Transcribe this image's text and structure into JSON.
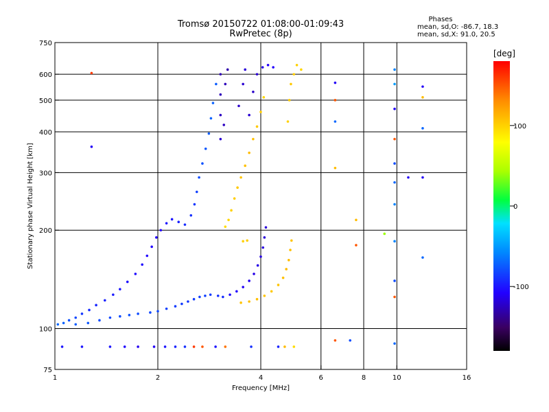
{
  "chart_data": {
    "type": "scatter",
    "title": "Tromsø 20150722 01:08:00-01:09:43",
    "subtitle": "RwPretec (8p)",
    "stats": {
      "heading": "Phases",
      "line_o": "mean, sd,O: -86.7, 18.3",
      "line_x": "mean, sd,X:  91.0, 20.5"
    },
    "xlabel": "Frequency [MHz]",
    "ylabel": "Stationary phase Virtual Height [km]",
    "x_scale": "log",
    "y_scale": "log",
    "xlim": [
      1,
      16
    ],
    "ylim": [
      75,
      750
    ],
    "x_ticks": [
      1,
      2,
      4,
      6,
      8,
      10,
      16
    ],
    "y_ticks": [
      75,
      100,
      200,
      300,
      400,
      500,
      600,
      750
    ],
    "x_gridlines": [
      2,
      4,
      6,
      8,
      10
    ],
    "y_gridlines": [
      100,
      200,
      300,
      400,
      500,
      600
    ],
    "grid": true,
    "colorbar": {
      "label": "[deg]",
      "min": -180,
      "max": 180,
      "ticks": [
        100,
        0,
        -100
      ]
    },
    "points": [
      {
        "x": 1.02,
        "y": 103,
        "phase": -70
      },
      {
        "x": 1.06,
        "y": 104,
        "phase": -72
      },
      {
        "x": 1.1,
        "y": 106,
        "phase": -78
      },
      {
        "x": 1.15,
        "y": 108,
        "phase": -82
      },
      {
        "x": 1.2,
        "y": 111,
        "phase": -88
      },
      {
        "x": 1.26,
        "y": 114,
        "phase": -92
      },
      {
        "x": 1.32,
        "y": 118,
        "phase": -94
      },
      {
        "x": 1.4,
        "y": 122,
        "phase": -96
      },
      {
        "x": 1.48,
        "y": 127,
        "phase": -98
      },
      {
        "x": 1.55,
        "y": 132,
        "phase": -100
      },
      {
        "x": 1.63,
        "y": 139,
        "phase": -102
      },
      {
        "x": 1.72,
        "y": 147,
        "phase": -104
      },
      {
        "x": 1.8,
        "y": 157,
        "phase": -104
      },
      {
        "x": 1.86,
        "y": 167,
        "phase": -106
      },
      {
        "x": 1.92,
        "y": 178,
        "phase": -106
      },
      {
        "x": 1.98,
        "y": 190,
        "phase": -108
      },
      {
        "x": 2.04,
        "y": 200,
        "phase": -108
      },
      {
        "x": 2.12,
        "y": 210,
        "phase": -100
      },
      {
        "x": 2.2,
        "y": 216,
        "phase": -100
      },
      {
        "x": 2.3,
        "y": 212,
        "phase": -96
      },
      {
        "x": 2.4,
        "y": 208,
        "phase": -92
      },
      {
        "x": 2.5,
        "y": 222,
        "phase": -90
      },
      {
        "x": 2.56,
        "y": 240,
        "phase": -88
      },
      {
        "x": 2.6,
        "y": 262,
        "phase": -84
      },
      {
        "x": 2.64,
        "y": 290,
        "phase": -80
      },
      {
        "x": 2.7,
        "y": 320,
        "phase": -78
      },
      {
        "x": 2.76,
        "y": 355,
        "phase": -76
      },
      {
        "x": 2.82,
        "y": 395,
        "phase": -74
      },
      {
        "x": 2.86,
        "y": 440,
        "phase": -72
      },
      {
        "x": 2.9,
        "y": 490,
        "phase": -72
      },
      {
        "x": 2.96,
        "y": 560,
        "phase": -74
      },
      {
        "x": 1.15,
        "y": 103,
        "phase": -74
      },
      {
        "x": 1.25,
        "y": 104,
        "phase": -76
      },
      {
        "x": 1.35,
        "y": 106,
        "phase": -80
      },
      {
        "x": 1.45,
        "y": 108,
        "phase": -82
      },
      {
        "x": 1.55,
        "y": 109,
        "phase": -80
      },
      {
        "x": 1.65,
        "y": 110,
        "phase": -78
      },
      {
        "x": 1.75,
        "y": 111,
        "phase": -80
      },
      {
        "x": 1.9,
        "y": 112,
        "phase": -82
      },
      {
        "x": 2.0,
        "y": 113,
        "phase": -82
      },
      {
        "x": 2.12,
        "y": 115,
        "phase": -84
      },
      {
        "x": 2.25,
        "y": 117,
        "phase": -86
      },
      {
        "x": 2.35,
        "y": 119,
        "phase": -86
      },
      {
        "x": 2.45,
        "y": 121,
        "phase": -88
      },
      {
        "x": 2.55,
        "y": 123,
        "phase": -86
      },
      {
        "x": 2.65,
        "y": 125,
        "phase": -84
      },
      {
        "x": 2.75,
        "y": 126,
        "phase": -84
      },
      {
        "x": 2.85,
        "y": 127,
        "phase": -86
      },
      {
        "x": 3.0,
        "y": 126,
        "phase": -90
      },
      {
        "x": 3.1,
        "y": 125,
        "phase": -92
      },
      {
        "x": 3.25,
        "y": 127,
        "phase": -104
      },
      {
        "x": 3.4,
        "y": 130,
        "phase": -108
      },
      {
        "x": 3.55,
        "y": 134,
        "phase": -110
      },
      {
        "x": 3.7,
        "y": 140,
        "phase": -112
      },
      {
        "x": 3.82,
        "y": 147,
        "phase": -114
      },
      {
        "x": 3.92,
        "y": 156,
        "phase": -114
      },
      {
        "x": 4.0,
        "y": 166,
        "phase": -116
      },
      {
        "x": 4.06,
        "y": 177,
        "phase": -116
      },
      {
        "x": 4.1,
        "y": 190,
        "phase": -118
      },
      {
        "x": 4.14,
        "y": 204,
        "phase": -118
      },
      {
        "x": 3.05,
        "y": 380,
        "phase": -120
      },
      {
        "x": 3.05,
        "y": 450,
        "phase": -124
      },
      {
        "x": 3.05,
        "y": 520,
        "phase": -126
      },
      {
        "x": 3.05,
        "y": 600,
        "phase": -128
      },
      {
        "x": 3.12,
        "y": 420,
        "phase": -124
      },
      {
        "x": 3.15,
        "y": 560,
        "phase": -126
      },
      {
        "x": 3.2,
        "y": 620,
        "phase": -130
      },
      {
        "x": 3.45,
        "y": 480,
        "phase": -122
      },
      {
        "x": 3.55,
        "y": 560,
        "phase": -120
      },
      {
        "x": 3.6,
        "y": 620,
        "phase": -118
      },
      {
        "x": 3.7,
        "y": 450,
        "phase": -120
      },
      {
        "x": 3.8,
        "y": 530,
        "phase": -122
      },
      {
        "x": 3.9,
        "y": 600,
        "phase": -120
      },
      {
        "x": 4.05,
        "y": 630,
        "phase": -112
      },
      {
        "x": 4.2,
        "y": 640,
        "phase": -110
      },
      {
        "x": 4.35,
        "y": 630,
        "phase": -108
      },
      {
        "x": 3.15,
        "y": 205,
        "phase": 95
      },
      {
        "x": 3.22,
        "y": 215,
        "phase": 98
      },
      {
        "x": 3.28,
        "y": 230,
        "phase": 100
      },
      {
        "x": 3.35,
        "y": 250,
        "phase": 102
      },
      {
        "x": 3.42,
        "y": 270,
        "phase": 104
      },
      {
        "x": 3.5,
        "y": 290,
        "phase": 106
      },
      {
        "x": 3.6,
        "y": 315,
        "phase": 108
      },
      {
        "x": 3.7,
        "y": 345,
        "phase": 110
      },
      {
        "x": 3.8,
        "y": 380,
        "phase": 108
      },
      {
        "x": 3.9,
        "y": 415,
        "phase": 104
      },
      {
        "x": 4.0,
        "y": 460,
        "phase": 102
      },
      {
        "x": 4.08,
        "y": 510,
        "phase": 98
      },
      {
        "x": 3.55,
        "y": 185,
        "phase": 100
      },
      {
        "x": 3.65,
        "y": 186,
        "phase": 102
      },
      {
        "x": 3.5,
        "y": 120,
        "phase": 106
      },
      {
        "x": 3.7,
        "y": 121,
        "phase": 108
      },
      {
        "x": 3.9,
        "y": 123,
        "phase": 108
      },
      {
        "x": 4.1,
        "y": 126,
        "phase": 106
      },
      {
        "x": 4.3,
        "y": 130,
        "phase": 104
      },
      {
        "x": 4.5,
        "y": 136,
        "phase": 106
      },
      {
        "x": 4.65,
        "y": 143,
        "phase": 108
      },
      {
        "x": 4.75,
        "y": 152,
        "phase": 110
      },
      {
        "x": 4.83,
        "y": 162,
        "phase": 110
      },
      {
        "x": 4.88,
        "y": 174,
        "phase": 108
      },
      {
        "x": 4.92,
        "y": 186,
        "phase": 106
      },
      {
        "x": 4.8,
        "y": 430,
        "phase": 100
      },
      {
        "x": 4.85,
        "y": 500,
        "phase": 102
      },
      {
        "x": 4.9,
        "y": 560,
        "phase": 104
      },
      {
        "x": 5.0,
        "y": 600,
        "phase": 102
      },
      {
        "x": 5.1,
        "y": 640,
        "phase": 100
      },
      {
        "x": 5.25,
        "y": 620,
        "phase": 98
      },
      {
        "x": 1.05,
        "y": 88,
        "phase": -100
      },
      {
        "x": 1.2,
        "y": 88,
        "phase": -100
      },
      {
        "x": 1.45,
        "y": 88,
        "phase": -100
      },
      {
        "x": 1.6,
        "y": 88,
        "phase": -105
      },
      {
        "x": 1.75,
        "y": 88,
        "phase": -112
      },
      {
        "x": 1.95,
        "y": 88,
        "phase": -110
      },
      {
        "x": 2.1,
        "y": 88,
        "phase": -100
      },
      {
        "x": 2.25,
        "y": 88,
        "phase": -95
      },
      {
        "x": 2.4,
        "y": 88,
        "phase": -90
      },
      {
        "x": 2.55,
        "y": 88,
        "phase": 160
      },
      {
        "x": 2.7,
        "y": 88,
        "phase": 150
      },
      {
        "x": 2.95,
        "y": 88,
        "phase": -100
      },
      {
        "x": 3.15,
        "y": 88,
        "phase": 140
      },
      {
        "x": 3.75,
        "y": 88,
        "phase": -90
      },
      {
        "x": 4.5,
        "y": 88,
        "phase": -95
      },
      {
        "x": 4.7,
        "y": 88,
        "phase": 110
      },
      {
        "x": 5.0,
        "y": 88,
        "phase": 95
      },
      {
        "x": 1.28,
        "y": 360,
        "phase": -110
      },
      {
        "x": 1.28,
        "y": 605,
        "phase": 160
      },
      {
        "x": 6.6,
        "y": 565,
        "phase": -110
      },
      {
        "x": 6.6,
        "y": 500,
        "phase": 150
      },
      {
        "x": 6.6,
        "y": 430,
        "phase": -70
      },
      {
        "x": 6.6,
        "y": 310,
        "phase": 110
      },
      {
        "x": 6.6,
        "y": 92,
        "phase": 150
      },
      {
        "x": 7.3,
        "y": 92,
        "phase": -80
      },
      {
        "x": 7.6,
        "y": 215,
        "phase": 110
      },
      {
        "x": 7.6,
        "y": 180,
        "phase": 150
      },
      {
        "x": 9.2,
        "y": 195,
        "phase": 40
      },
      {
        "x": 9.85,
        "y": 620,
        "phase": -60
      },
      {
        "x": 9.85,
        "y": 560,
        "phase": -50
      },
      {
        "x": 9.85,
        "y": 470,
        "phase": -110
      },
      {
        "x": 9.85,
        "y": 380,
        "phase": 150
      },
      {
        "x": 9.85,
        "y": 320,
        "phase": -80
      },
      {
        "x": 9.85,
        "y": 280,
        "phase": -70
      },
      {
        "x": 9.85,
        "y": 240,
        "phase": -60
      },
      {
        "x": 9.85,
        "y": 185,
        "phase": -60
      },
      {
        "x": 9.85,
        "y": 140,
        "phase": -80
      },
      {
        "x": 9.85,
        "y": 125,
        "phase": 150
      },
      {
        "x": 9.85,
        "y": 90,
        "phase": -70
      },
      {
        "x": 10.8,
        "y": 290,
        "phase": -110
      },
      {
        "x": 11.9,
        "y": 550,
        "phase": -110
      },
      {
        "x": 11.9,
        "y": 510,
        "phase": 110
      },
      {
        "x": 11.9,
        "y": 410,
        "phase": -70
      },
      {
        "x": 11.9,
        "y": 290,
        "phase": -110
      },
      {
        "x": 11.9,
        "y": 165,
        "phase": -70
      }
    ]
  }
}
